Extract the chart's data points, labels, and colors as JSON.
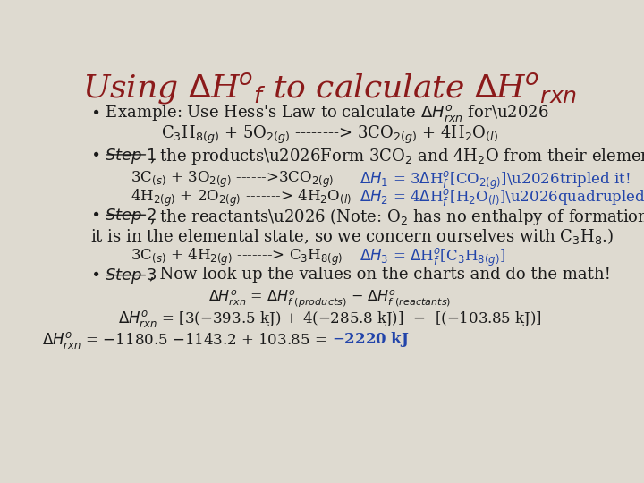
{
  "bg_color": "#dedad0",
  "title_color": "#8b1a1a",
  "body_color": "#1a1a1a",
  "blue_color": "#2244aa"
}
